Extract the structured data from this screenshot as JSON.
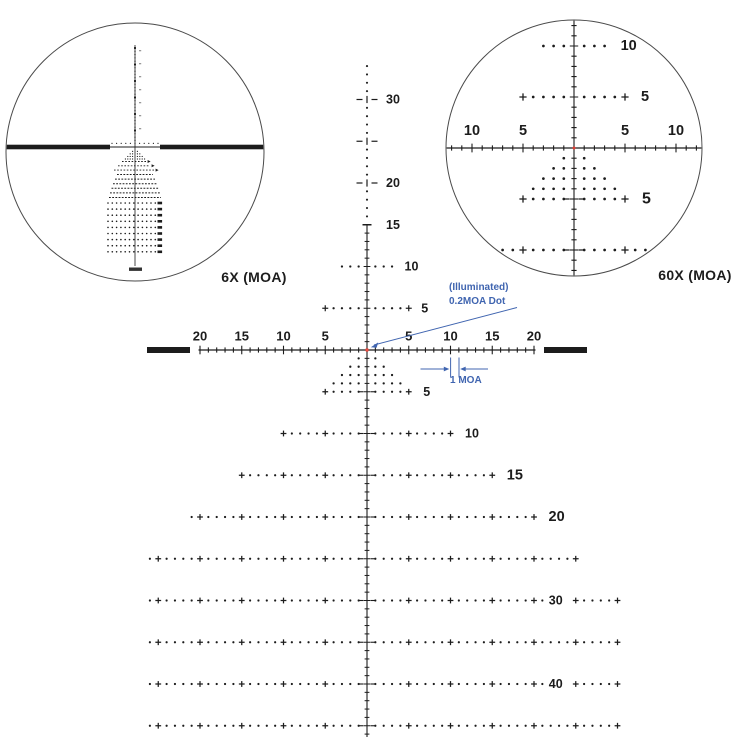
{
  "title_labels": {
    "six_x": "6X (MOA)",
    "sixty_x": "60X (MOA)"
  },
  "annotations": {
    "illuminated_line1": "(Illuminated)",
    "illuminated_line2": "0.2MOA Dot",
    "one_moa_label": "1 MOA"
  },
  "colors": {
    "ink": "#1c1c1c",
    "blue": "#4065b0",
    "red": "#e03c31",
    "circle": "#4a4a4a",
    "background": "#ffffff"
  },
  "main_reticle": {
    "upper_axis_marks": [
      {
        "moa": 20,
        "label": "20"
      },
      {
        "moa": 25,
        "label": ""
      },
      {
        "moa": 30,
        "label": "30"
      }
    ],
    "upper_line_end": {
      "moa": 15,
      "label": "15"
    },
    "upper_dot_rows": [
      {
        "at_moa": 5,
        "from": -5,
        "to": 5,
        "label": "5"
      },
      {
        "at_moa": 10,
        "from": -3,
        "to": 3,
        "label": "10"
      }
    ],
    "horizontal_axis_labels": [
      {
        "moa": -20,
        "label": "20"
      },
      {
        "moa": -15,
        "label": "15"
      },
      {
        "moa": -10,
        "label": "10"
      },
      {
        "moa": -5,
        "label": "5"
      },
      {
        "moa": 5,
        "label": "5"
      },
      {
        "moa": 10,
        "label": "10"
      },
      {
        "moa": 15,
        "label": "15"
      },
      {
        "moa": 20,
        "label": "20"
      }
    ],
    "tree_rows_moa": [
      1,
      2,
      3,
      4
    ],
    "lower_dot_rows": [
      {
        "at_moa": 5,
        "from": -5,
        "to": 5,
        "label": "5",
        "label_pos": "right"
      },
      {
        "at_moa": 10,
        "from": -10,
        "to": 10,
        "label": "10",
        "label_pos": "right"
      },
      {
        "at_moa": 15,
        "from": -15,
        "to": 15,
        "label": "15",
        "label_pos": "right",
        "large": true
      },
      {
        "at_moa": 20,
        "from": -21,
        "to": 20,
        "label": "20",
        "label_pos": "right",
        "large": true
      },
      {
        "at_moa": 25,
        "from": -26,
        "to": 25
      },
      {
        "at_moa": 30,
        "from": -26,
        "to": 30,
        "label": "30",
        "label_pos": "inline",
        "gap": [
          22,
          24
        ]
      },
      {
        "at_moa": 35,
        "from": -26,
        "to": 30
      },
      {
        "at_moa": 40,
        "from": -26,
        "to": 30,
        "label": "40",
        "label_pos": "inline",
        "gap": [
          22,
          24
        ]
      },
      {
        "at_moa": 45,
        "from": -26,
        "to": 30
      }
    ]
  },
  "view_60x": {
    "horizontal_axis_labels": [
      {
        "moa": -10,
        "label": "10"
      },
      {
        "moa": -5,
        "label": "5"
      },
      {
        "moa": 5,
        "label": "5"
      },
      {
        "moa": 10,
        "label": "10"
      }
    ],
    "upper_dot_rows": [
      {
        "at_moa": 5,
        "from": -5,
        "to": 5,
        "label": "5"
      },
      {
        "at_moa": 10,
        "from": -3,
        "to": 3,
        "label": "10"
      }
    ],
    "tree_rows_moa": [
      1,
      2,
      3,
      4
    ],
    "lower_dot_rows": [
      {
        "at_moa": 5,
        "from": -5,
        "to": 5,
        "label": "5"
      },
      {
        "at_moa": 10,
        "from": -7,
        "to": 7
      }
    ]
  }
}
